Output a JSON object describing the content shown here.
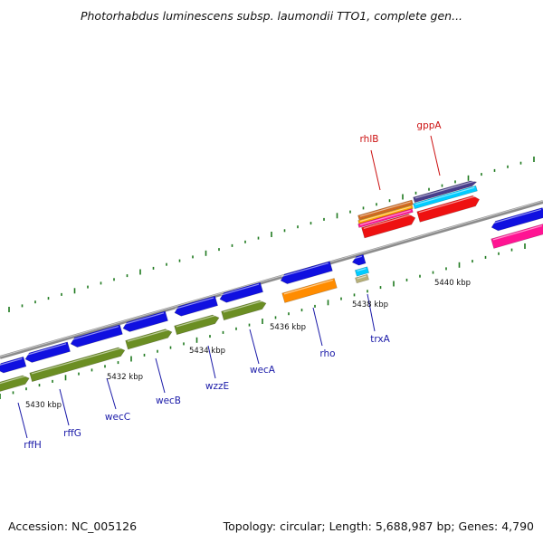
{
  "title": "Photorhabdus luminescens subsp. laumondii TTO1, complete gen...",
  "footer": {
    "accession": "Accession: NC_005126",
    "stats": "Topology: circular; Length: 5,688,987 bp; Genes: 4,790"
  },
  "colors": {
    "backbone": "#8c8c8c",
    "tick": "#1f7a1f",
    "gene_blue": "#1010e0",
    "gene_olive": "#6b8e23",
    "gene_orange": "#ff8c00",
    "gene_red": "#ee1111",
    "gene_pink": "#ff1493",
    "gene_cyan": "#00ccff",
    "label_blue": "#1a1aa8",
    "label_red": "#cc1111"
  },
  "scale_labels": [
    "5430 kbp",
    "5432 kbp",
    "5434 kbp",
    "5436 kbp",
    "5438 kbp",
    "5440 kbp"
  ],
  "genes": [
    {
      "name": "rffH",
      "color": "label_blue"
    },
    {
      "name": "rffG",
      "color": "label_blue"
    },
    {
      "name": "wecC",
      "color": "label_blue"
    },
    {
      "name": "wecB",
      "color": "label_blue"
    },
    {
      "name": "wzzE",
      "color": "label_blue"
    },
    {
      "name": "wecA",
      "color": "label_blue"
    },
    {
      "name": "rho",
      "color": "label_blue"
    },
    {
      "name": "trxA",
      "color": "label_blue"
    },
    {
      "name": "rhlB",
      "color": "label_red"
    },
    {
      "name": "gppA",
      "color": "label_red"
    }
  ]
}
